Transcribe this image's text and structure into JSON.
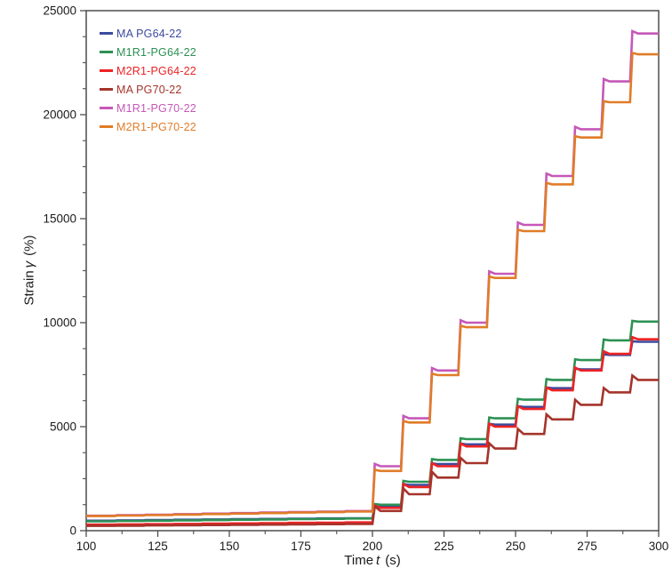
{
  "chart_data": {
    "type": "line",
    "title": "",
    "xlabel": {
      "pre": "Time",
      "var": "t",
      "post": "(s)"
    },
    "ylabel": {
      "pre": "Strain",
      "var": "γ",
      "post": "(%)"
    },
    "xlim": [
      100,
      300
    ],
    "ylim": [
      0,
      25000
    ],
    "xticks": [
      100,
      125,
      150,
      175,
      200,
      225,
      250,
      275,
      300
    ],
    "yticks": [
      0,
      5000,
      10000,
      15000,
      20000,
      25000
    ],
    "x_minor_step": 12.5,
    "y_minor_step": 1250,
    "grid": "off",
    "legend_position": "top-left",
    "cycle_seconds": 10,
    "description": "Staircase creep-recovery strain curves; small steps every 10 s from 100-200 s, large steps every 10 s from 200-300 s",
    "series": [
      {
        "name": "MA PG64-22",
        "color": "#3c4a9e",
        "sag": 0.04,
        "pre200_plateaus": [
          480,
          495,
          510,
          525,
          540,
          552,
          565,
          578,
          590,
          600
        ],
        "post200_plateaus": [
          1150,
          2200,
          3200,
          4150,
          5100,
          5950,
          6850,
          7750,
          8450,
          9080
        ]
      },
      {
        "name": "M1R1-PG64-22",
        "color": "#2c9153",
        "sag": 0.04,
        "pre200_plateaus": [
          450,
          465,
          480,
          495,
          510,
          525,
          540,
          555,
          570,
          585
        ],
        "post200_plateaus": [
          1250,
          2350,
          3400,
          4400,
          5400,
          6300,
          7250,
          8200,
          9150,
          10050
        ]
      },
      {
        "name": "M2R1-PG64-22",
        "color": "#ee2224",
        "sag": 0.15,
        "pre200_plateaus": [
          290,
          302,
          314,
          326,
          338,
          350,
          362,
          374,
          386,
          398
        ],
        "post200_plateaus": [
          1100,
          2100,
          3100,
          4050,
          5000,
          5850,
          6750,
          7700,
          8500,
          9200
        ]
      },
      {
        "name": "MA PG70-22",
        "color": "#a5342b",
        "sag": 0.35,
        "pre200_plateaus": [
          230,
          240,
          250,
          260,
          270,
          280,
          290,
          300,
          310,
          320
        ],
        "post200_plateaus": [
          950,
          1750,
          2550,
          3250,
          3950,
          4650,
          5350,
          6050,
          6650,
          7250
        ]
      },
      {
        "name": "M1R1-PG70-22",
        "color": "#c558b8",
        "sag": 0.05,
        "pre200_plateaus": [
          720,
          745,
          770,
          795,
          820,
          845,
          870,
          895,
          920,
          945
        ],
        "post200_plateaus": [
          3100,
          5400,
          7700,
          10000,
          12350,
          14700,
          17050,
          19300,
          21600,
          23900
        ]
      },
      {
        "name": "M2R1-PG70-22",
        "color": "#e07c28",
        "sag": 0.03,
        "pre200_plateaus": [
          700,
          725,
          750,
          775,
          798,
          822,
          846,
          870,
          894,
          918
        ],
        "post200_plateaus": [
          2870,
          5200,
          7480,
          9780,
          12150,
          14400,
          16650,
          18900,
          20600,
          22900
        ]
      }
    ],
    "axis_color": "#4d4d4d",
    "tick_label_color": "#1a1a1a"
  }
}
